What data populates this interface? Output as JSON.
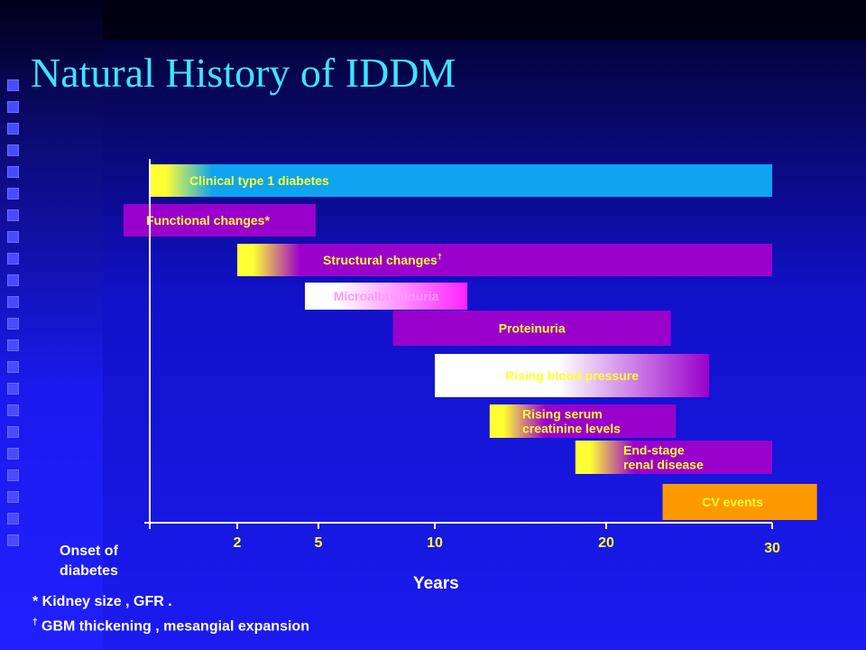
{
  "title": "Natural History of IDDM",
  "chart_data": {
    "type": "gantt",
    "x_scale": "piecewise",
    "xlabel": "Years",
    "xticks": [
      {
        "value": 0,
        "label": ""
      },
      {
        "value": 2,
        "label": "2"
      },
      {
        "value": 5,
        "label": "5"
      },
      {
        "value": 10,
        "label": "10"
      },
      {
        "value": 20,
        "label": "20"
      },
      {
        "value": 30,
        "label": "30"
      }
    ],
    "x_start_label": "Onset of diabetes",
    "bars": [
      {
        "name": "Clinical type 1 diabetes",
        "lines": [
          "Clinical type 1 diabetes"
        ],
        "start": 0,
        "end": 30,
        "color": "#0ea4f0",
        "fade_in": true,
        "label_color": "#ffff33"
      },
      {
        "name": "Functional changes*",
        "lines": [
          "Functional changes*"
        ],
        "start": -0.6,
        "end": 4.9,
        "color": "#9a00cc",
        "fade_in": false,
        "label_color": "#ffff33"
      },
      {
        "name": "Structural changes",
        "lines": [
          "Structural changes"
        ],
        "sup": "†",
        "start": 2,
        "end": 30,
        "color": "#9a00cc",
        "fade_in": true,
        "label_color": "#ffff33"
      },
      {
        "name": "Microalbuminuria",
        "lines": [
          "Microalbuminuria"
        ],
        "start": 4.5,
        "end": 11.9,
        "color": "#ff22ff",
        "fade_in": true,
        "start_color": "#ffffff",
        "label_color": "#ff99ff"
      },
      {
        "name": "Proteinuria",
        "lines": [
          "Proteinuria"
        ],
        "start": 8.2,
        "end": 23.9,
        "color": "#9a00cc",
        "fade_in": false,
        "label_color": "#ffff33"
      },
      {
        "name": "Rising blood pressure",
        "lines": [
          "Rising blood pressure"
        ],
        "start": 10,
        "end": 26.2,
        "color": "#9a00cc",
        "fade_in": true,
        "start_color": "#ffffff",
        "mid_white": true,
        "label_color": "#ffff33"
      },
      {
        "name": "Rising serum creatinine levels",
        "lines": [
          "Rising serum",
          "creatinine levels"
        ],
        "start": 13.2,
        "end": 24.2,
        "color": "#9a00cc",
        "fade_in": true,
        "label_color": "#ffff33"
      },
      {
        "name": "End-stage renal disease",
        "lines": [
          "End-stage",
          "renal disease"
        ],
        "start": 18.2,
        "end": 30,
        "color": "#9a00cc",
        "fade_in": true,
        "label_color": "#ffff33"
      },
      {
        "name": "CV events",
        "lines": [
          "CV events"
        ],
        "start": 23.4,
        "end": 32.7,
        "color": "#ff9900",
        "fade_in": false,
        "label_color": "#ffff33",
        "label_weight": "normal"
      }
    ]
  },
  "footnotes": {
    "kidney": "* Kidney size , GFR .",
    "gbm_symbol": "†",
    "gbm": " GBM thickening , mesangial expansion"
  },
  "colors": {
    "background": "#1a1aee",
    "title": "#3fe3ff",
    "tick_labels": "#ffff33"
  }
}
